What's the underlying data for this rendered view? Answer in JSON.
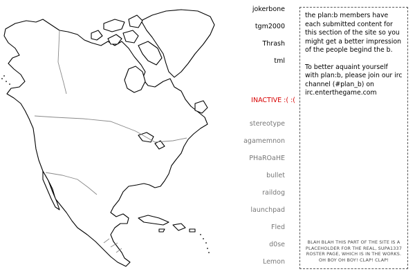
{
  "members": {
    "active": [
      {
        "name": "jokerbone"
      },
      {
        "name": "tgm2000"
      },
      {
        "name": "Thrash"
      },
      {
        "name": "tml"
      }
    ],
    "inactive_heading": "INACTIVE :( :(",
    "inactive": [
      {
        "name": "stereotype"
      },
      {
        "name": "agamemnon"
      },
      {
        "name": "PHaROaHE"
      },
      {
        "name": "bullet"
      },
      {
        "name": "raildog"
      },
      {
        "name": "launchpad"
      },
      {
        "name": "Fled"
      },
      {
        "name": "d0se"
      },
      {
        "name": "Lemon"
      }
    ]
  },
  "info": {
    "paragraph1": "the plan:b members have each submitted content for this section of the site so you might get a better impression of the people begind the b.",
    "paragraph2": "To better aquaint yourself with plan:b, please join our irc channel (#plan_b) on irc.enterthegame.com",
    "placeholder_note": "BLAH BLAH THIS PART OF THE SITE IS A PLACEHOLDER FOR THE REAL, SUPA1337 ROSTER PAGE, WHICH IS IN THE WORKS. OH BOY OH BOY! CLAP! CLAP!"
  },
  "colors": {
    "inactive_heading": "#d80000",
    "inactive_name": "#777777",
    "active_name": "#000000",
    "map_outline": "#000000",
    "map_borders": "#888888"
  }
}
